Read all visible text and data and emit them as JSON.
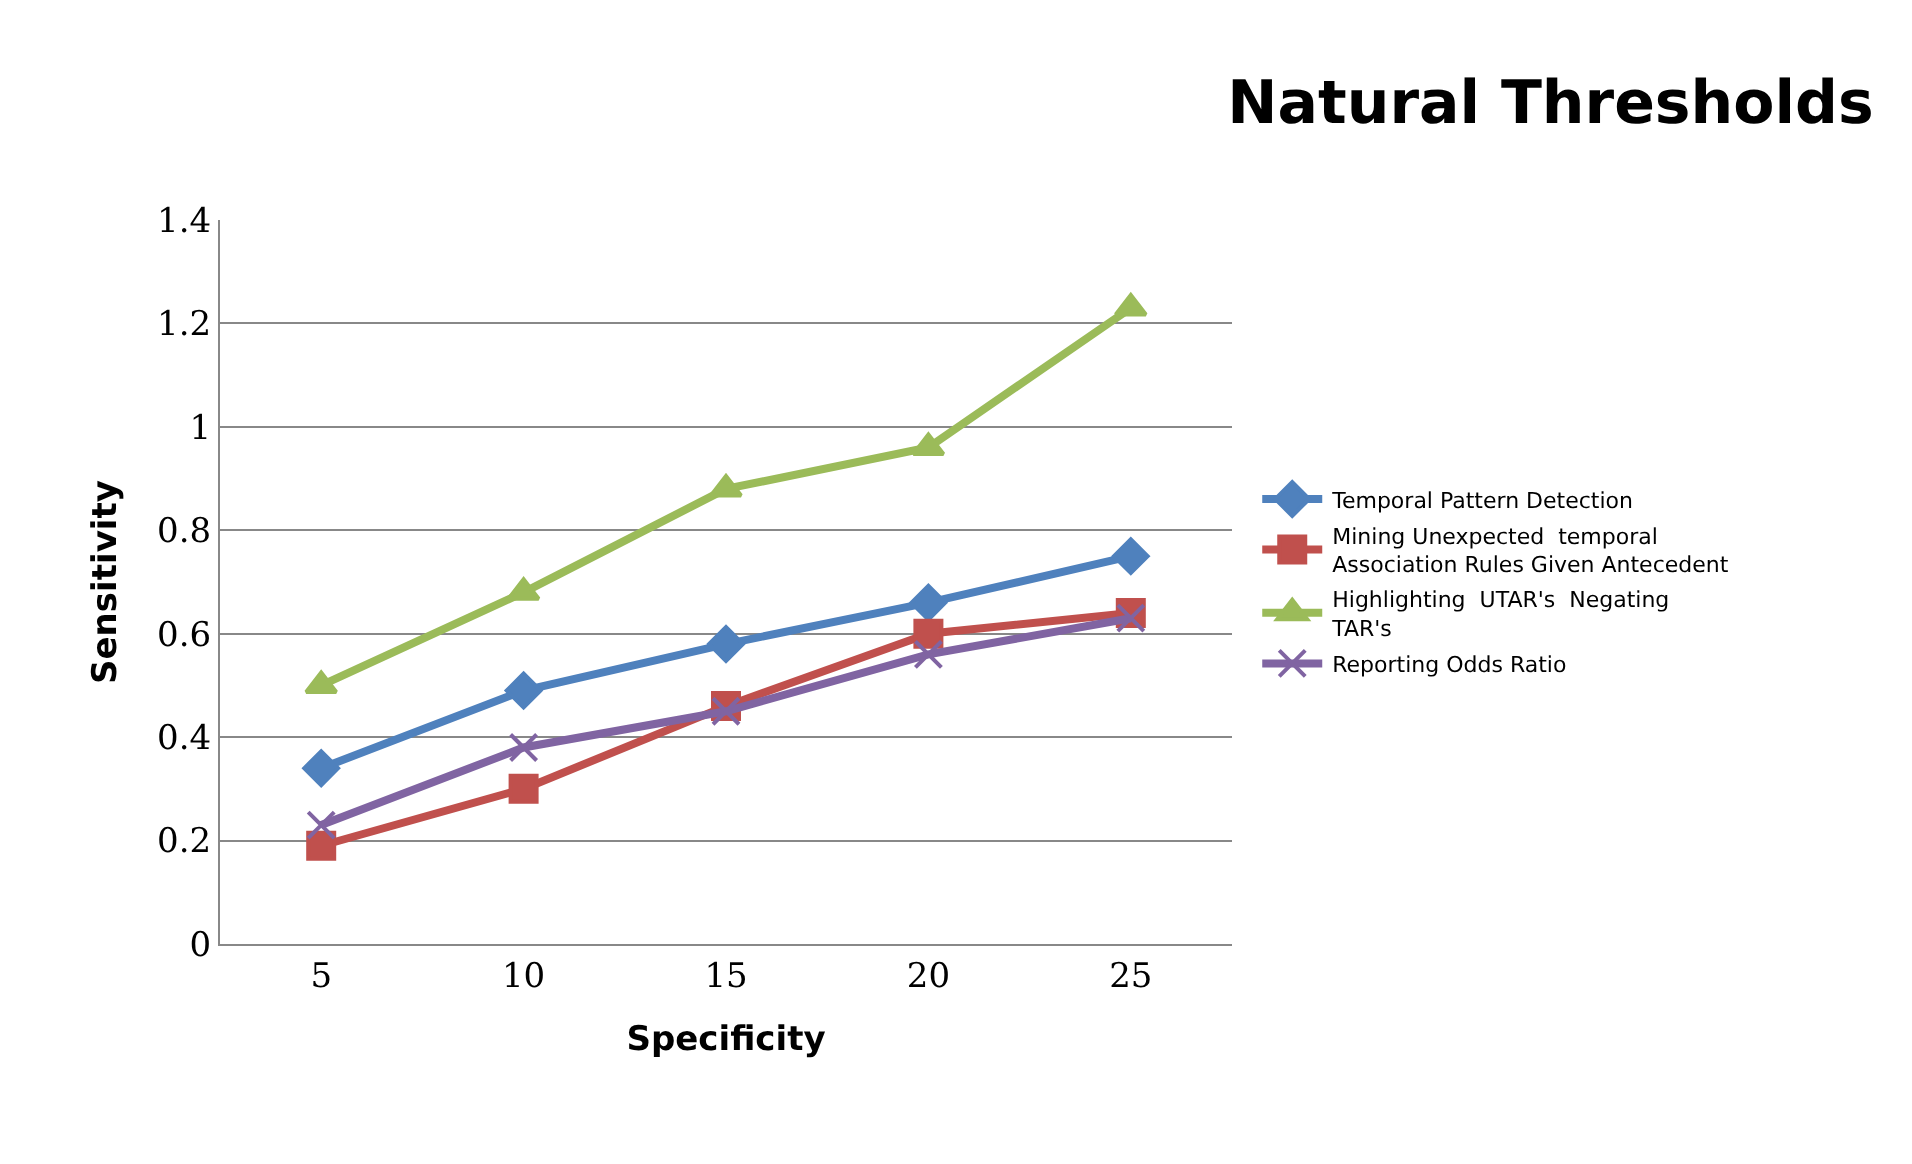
{
  "chart_data": {
    "type": "line",
    "title": "Natural Thresholds",
    "xlabel": "Specificity",
    "ylabel": "Sensitivity",
    "categories": [
      "5",
      "10",
      "15",
      "20",
      "25"
    ],
    "series": [
      {
        "name": "Temporal Pattern Detection",
        "color": "#4f81bd",
        "marker": "diamond",
        "values": [
          0.34,
          0.49,
          0.58,
          0.66,
          0.75
        ]
      },
      {
        "name": "Mining Unexpected  temporal Association Rules Given Antecedent",
        "color": "#c0504d",
        "marker": "square",
        "values": [
          0.19,
          0.3,
          0.46,
          0.6,
          0.64
        ]
      },
      {
        "name": "Highlighting  UTAR's  Negating TAR's",
        "color": "#9bbb59",
        "marker": "triangle",
        "values": [
          0.5,
          0.68,
          0.88,
          0.96,
          1.23
        ]
      },
      {
        "name": "Reporting Odds Ratio",
        "color": "#8064a2",
        "marker": "cross",
        "values": [
          0.23,
          0.38,
          0.45,
          0.56,
          0.63
        ]
      }
    ],
    "ylim": [
      0,
      1.4
    ],
    "yticks": [
      0,
      0.2,
      0.4,
      0.6,
      0.8,
      1,
      1.2,
      1.4
    ],
    "grid": "y",
    "legend": "right",
    "line_style": "solid"
  }
}
